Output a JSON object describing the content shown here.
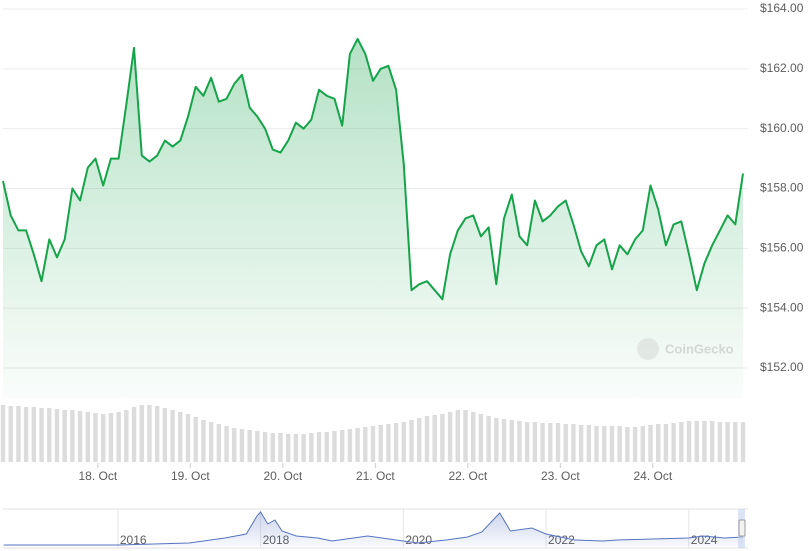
{
  "chart_data": {
    "type": "line",
    "color": "#16a34a",
    "values": [
      158.25,
      157.1,
      156.6,
      156.6,
      155.8,
      154.9,
      156.3,
      155.7,
      156.3,
      158.0,
      157.6,
      158.7,
      159.0,
      158.1,
      159.0,
      159.0,
      160.8,
      162.7,
      159.1,
      158.9,
      159.1,
      159.6,
      159.4,
      159.6,
      160.4,
      161.4,
      161.1,
      161.7,
      160.9,
      161.0,
      161.5,
      161.8,
      160.7,
      160.4,
      160.0,
      159.3,
      159.2,
      159.6,
      160.2,
      160.0,
      160.3,
      161.3,
      161.1,
      161.0,
      160.1,
      162.5,
      163.0,
      162.5,
      161.6,
      162.0,
      162.1,
      161.3,
      158.8,
      154.6,
      154.8,
      154.9,
      154.6,
      154.3,
      155.8,
      156.6,
      157.0,
      157.1,
      156.4,
      156.7,
      154.8,
      157.0,
      157.8,
      156.4,
      156.1,
      157.6,
      156.9,
      157.1,
      157.4,
      157.6,
      156.8,
      155.9,
      155.4,
      156.1,
      156.3,
      155.3,
      156.1,
      155.8,
      156.3,
      156.6,
      158.1,
      157.3,
      156.1,
      156.8,
      156.9,
      155.8,
      154.6,
      155.5,
      156.1,
      156.6,
      157.1,
      156.8,
      158.5
    ],
    "volume_values": [
      57,
      56,
      56,
      55,
      55,
      54,
      54,
      53,
      52,
      52,
      51,
      50,
      49,
      48,
      49,
      50,
      52,
      55,
      57,
      57,
      56,
      54,
      52,
      50,
      48,
      45,
      42,
      40,
      38,
      36,
      34,
      33,
      32,
      31,
      30,
      29,
      29,
      28,
      28,
      28,
      29,
      30,
      30,
      31,
      32,
      33,
      34,
      35,
      36,
      37,
      38,
      39,
      40,
      42,
      44,
      46,
      47,
      48,
      50,
      52,
      52,
      50,
      48,
      46,
      44,
      43,
      42,
      41,
      40,
      40,
      39,
      39,
      39,
      38,
      38,
      37,
      37,
      36,
      36,
      36,
      36,
      35,
      35,
      36,
      37,
      38,
      38,
      39,
      40,
      41,
      41,
      41,
      41,
      40,
      40,
      40,
      40
    ],
    "volume_color": "#dcdcdc",
    "xlim": [
      0,
      96
    ],
    "xticks": [
      {
        "value": 12.3,
        "label": "18. Oct"
      },
      {
        "value": 24.3,
        "label": "19. Oct"
      },
      {
        "value": 36.3,
        "label": "20. Oct"
      },
      {
        "value": 48.3,
        "label": "21. Oct"
      },
      {
        "value": 60.3,
        "label": "22. Oct"
      },
      {
        "value": 72.3,
        "label": "23. Oct"
      },
      {
        "value": 84.3,
        "label": "24. Oct"
      }
    ],
    "ylim": [
      152,
      164
    ],
    "yticks": [
      {
        "value": 152,
        "label": "$152.00"
      },
      {
        "value": 154,
        "label": "$154.00"
      },
      {
        "value": 156,
        "label": "$156.00"
      },
      {
        "value": 158,
        "label": "$158.00"
      },
      {
        "value": 160,
        "label": "$160.00"
      },
      {
        "value": 162,
        "label": "$162.00"
      },
      {
        "value": 164,
        "label": "$164.00"
      }
    ],
    "grid": true,
    "watermark": "CoinGecko",
    "navigator": {
      "color": "#5674c0",
      "x": [
        2014.4,
        2015,
        2016,
        2016.5,
        2017,
        2017.5,
        2017.8,
        2017.95,
        2018.0,
        2018.1,
        2018.2,
        2018.3,
        2018.5,
        2018.8,
        2019,
        2019.5,
        2019.8,
        2020,
        2020.2,
        2020.6,
        2020.9,
        2021.1,
        2021.35,
        2021.5,
        2021.8,
        2022,
        2022.4,
        2022.8,
        2023,
        2023.5,
        2024,
        2024.2,
        2024.5,
        2024.76
      ],
      "values": [
        1,
        1,
        1,
        2,
        3,
        8,
        12,
        30,
        34,
        22,
        26,
        15,
        10,
        8,
        5,
        10,
        7,
        5,
        3,
        6,
        9,
        14,
        33,
        15,
        18,
        12,
        6,
        5,
        6,
        7,
        8,
        10,
        8,
        9
      ],
      "xlim": [
        2014.39,
        2024.76
      ],
      "xticks": [
        2016,
        2018,
        2020,
        2022,
        2024
      ]
    }
  }
}
